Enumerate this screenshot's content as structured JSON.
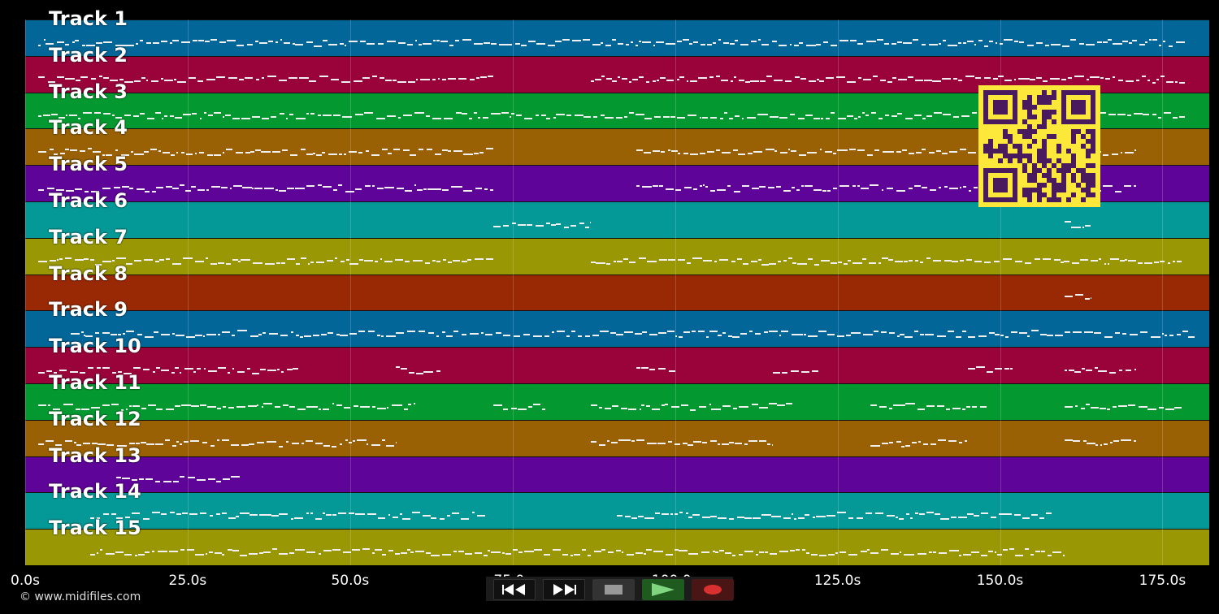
{
  "tracks": [
    {
      "label": "Track 1",
      "color": "#036699"
    },
    {
      "label": "Track 2",
      "color": "#99033a"
    },
    {
      "label": "Track 3",
      "color": "#049930"
    },
    {
      "label": "Track 4",
      "color": "#996104"
    },
    {
      "label": "Track 5",
      "color": "#5f0499"
    },
    {
      "label": "Track 6",
      "color": "#049996"
    },
    {
      "label": "Track 7",
      "color": "#999804"
    },
    {
      "label": "Track 8",
      "color": "#992904"
    },
    {
      "label": "Track 9",
      "color": "#036699"
    },
    {
      "label": "Track 10",
      "color": "#99033a"
    },
    {
      "label": "Track 11",
      "color": "#049930"
    },
    {
      "label": "Track 12",
      "color": "#996104"
    },
    {
      "label": "Track 13",
      "color": "#5f0499"
    },
    {
      "label": "Track 14",
      "color": "#049996"
    },
    {
      "label": "Track 15",
      "color": "#999804"
    }
  ],
  "timeline": {
    "ticks": [
      "0.0s",
      "25.0s",
      "50.0s",
      "75.0s",
      "100.0s",
      "125.0s",
      "150.0s",
      "175.0s"
    ],
    "tick_seconds": [
      0,
      25,
      50,
      75,
      100,
      125,
      150,
      175
    ],
    "max_seconds": 182.2
  },
  "note_activity_seconds": [
    [
      [
        2,
        178.5
      ]
    ],
    [
      [
        2,
        72
      ],
      [
        87,
        178.5
      ]
    ],
    [
      [
        2,
        178.5
      ]
    ],
    [
      [
        2,
        72
      ],
      [
        94,
        171
      ]
    ],
    [
      [
        2,
        72
      ],
      [
        94,
        171
      ]
    ],
    [
      [
        72,
        87
      ],
      [
        160,
        164
      ]
    ],
    [
      [
        2,
        72
      ],
      [
        87,
        178
      ]
    ],
    [
      [
        160,
        164
      ]
    ],
    [
      [
        7,
        180
      ]
    ],
    [
      [
        2,
        42
      ],
      [
        57,
        64
      ],
      [
        94,
        100
      ],
      [
        115,
        122
      ],
      [
        145,
        152
      ],
      [
        160,
        171
      ]
    ],
    [
      [
        2,
        60
      ],
      [
        72,
        80
      ],
      [
        87,
        118
      ],
      [
        130,
        148
      ],
      [
        160,
        178
      ]
    ],
    [
      [
        2,
        57
      ],
      [
        87,
        115
      ],
      [
        130,
        145
      ],
      [
        160,
        171
      ]
    ],
    [
      [
        14,
        33
      ]
    ],
    [
      [
        10,
        71
      ],
      [
        91,
        158
      ]
    ],
    [
      [
        10,
        160
      ]
    ]
  ],
  "copyright": "© www.midifiles.com",
  "transport": {
    "rewind_icon": "rewind-icon",
    "fast_forward_icon": "fast-forward-icon",
    "stop_icon": "stop-icon",
    "play_icon": "play-icon",
    "record_icon": "record-icon",
    "play_color": "#2d8a2d",
    "record_color": "#d93030"
  },
  "qr_code": {
    "color": "#fce83a",
    "dark_color": "#4a1a5e"
  }
}
